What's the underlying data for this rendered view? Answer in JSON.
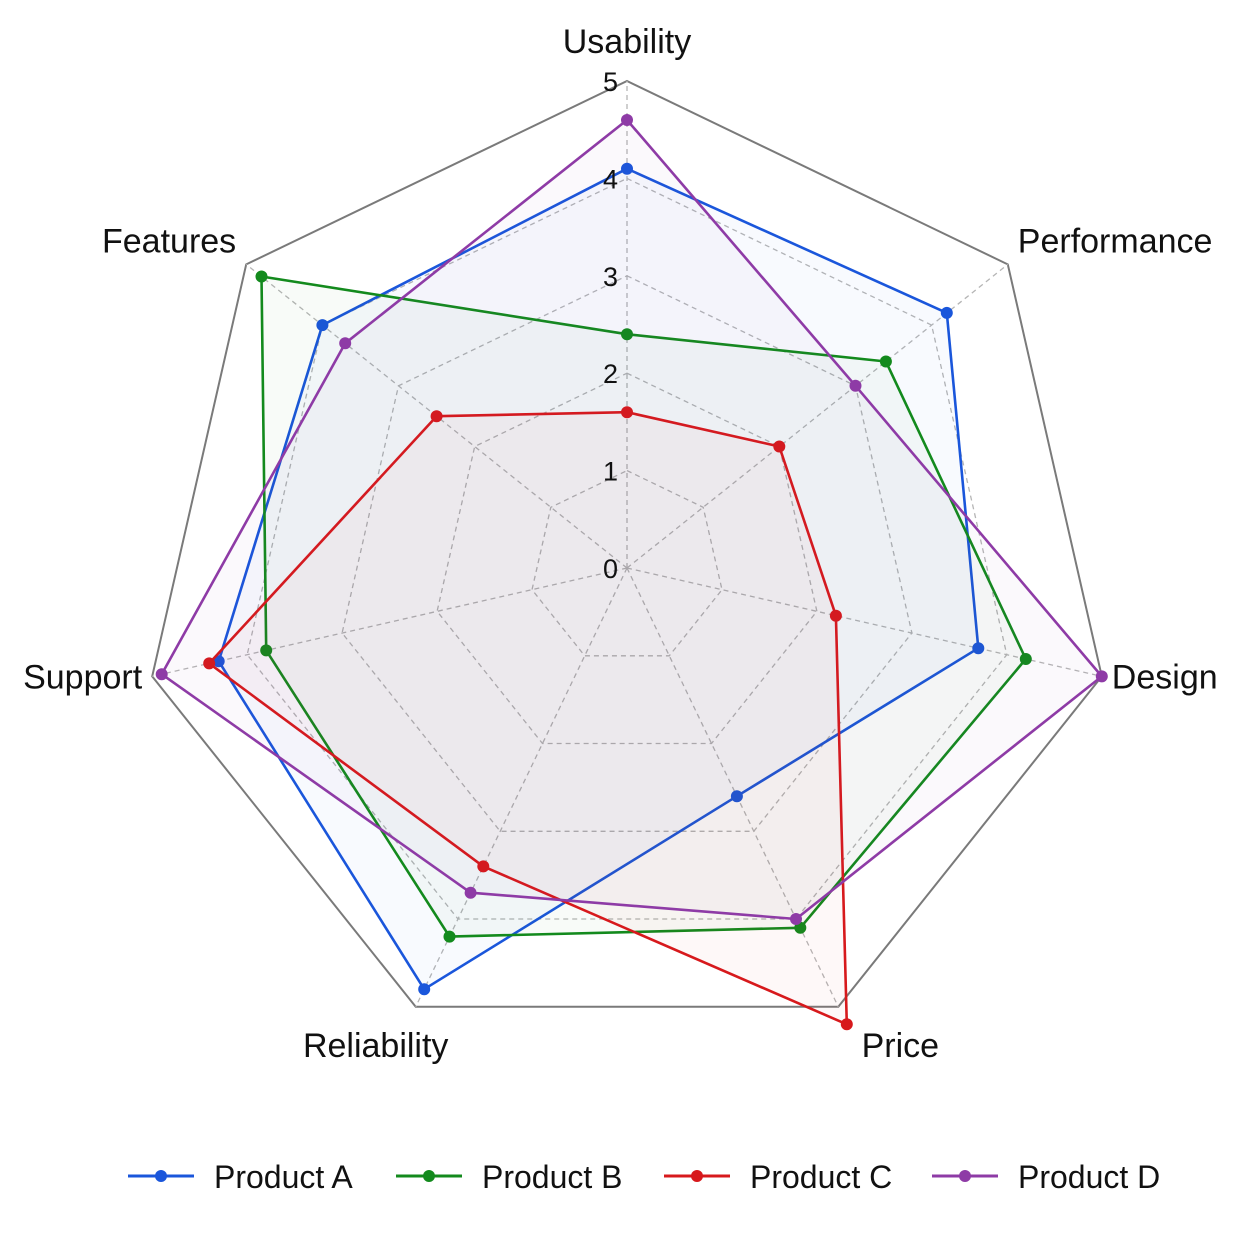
{
  "chart_data": {
    "type": "radar",
    "title": "",
    "axes": [
      "Usability",
      "Performance",
      "Design",
      "Price",
      "Reliability",
      "Support",
      "Features"
    ],
    "rlim": [
      0,
      5
    ],
    "rticks": [
      0,
      1,
      2,
      3,
      4,
      5
    ],
    "grid": true,
    "legend": "bottom",
    "series": [
      {
        "name": "Product A",
        "color": "#1a56db",
        "values": [
          4.1,
          4.2,
          3.7,
          2.6,
          4.8,
          4.3,
          4.0
        ]
      },
      {
        "name": "Product B",
        "color": "#138a1d",
        "values": [
          2.4,
          3.4,
          4.2,
          4.1,
          4.2,
          3.8,
          4.8
        ]
      },
      {
        "name": "Product C",
        "color": "#d7191c",
        "values": [
          1.6,
          2.0,
          2.2,
          5.2,
          3.4,
          4.4,
          2.5
        ]
      },
      {
        "name": "Product D",
        "color": "#8e3ba6",
        "values": [
          4.6,
          3.0,
          5.0,
          4.0,
          3.7,
          4.9,
          3.7
        ]
      }
    ]
  }
}
